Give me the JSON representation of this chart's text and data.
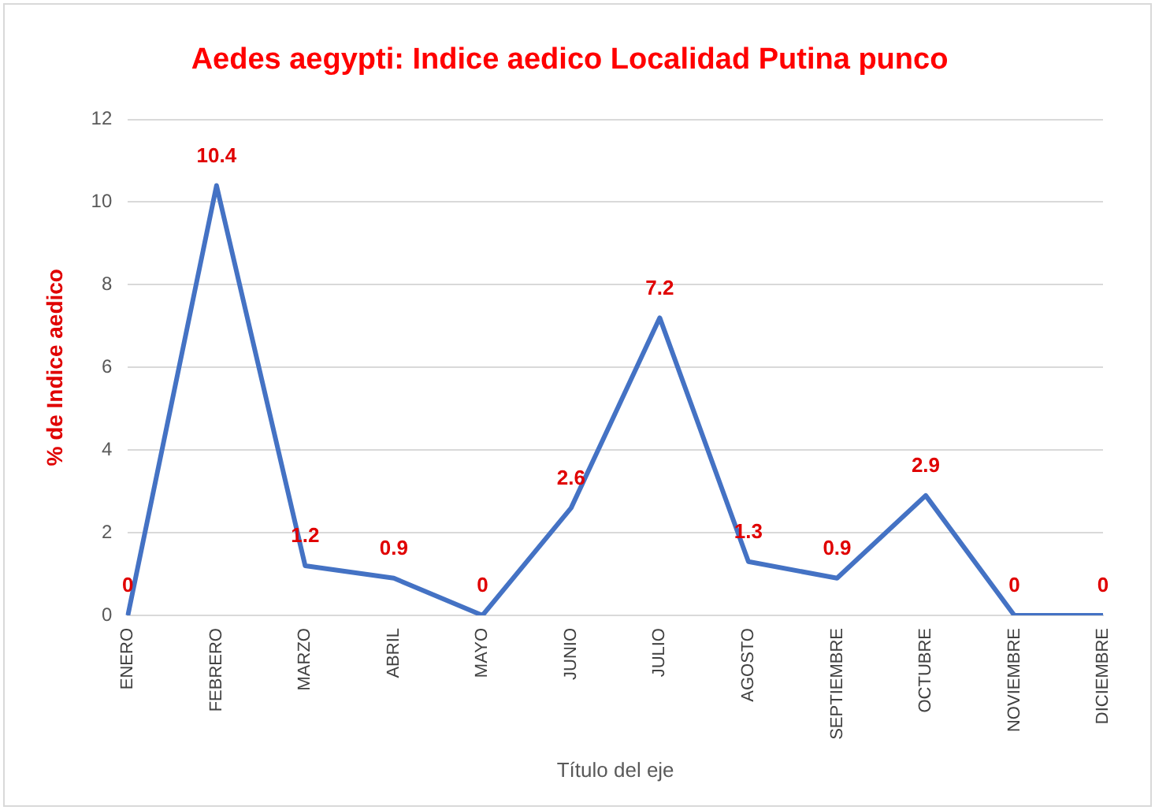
{
  "chart_data": {
    "type": "line",
    "title": "Aedes aegypti: Indice aedico Localidad Putina punco",
    "xlabel": "Título del eje",
    "ylabel": "% de Indice aedico",
    "categories": [
      "ENERO",
      "FEBRERO",
      "MARZO",
      "ABRIL",
      "MAYO",
      "JUNIO",
      "JULIO",
      "AGOSTO",
      "SEPTIEMBRE",
      "OCTUBRE",
      "NOVIEMBRE",
      "DICIEMBRE"
    ],
    "series": [
      {
        "color": "#4472c4",
        "values": [
          0,
          10.4,
          1.2,
          0.9,
          0,
          2.6,
          7.2,
          1.3,
          0.9,
          2.9,
          0,
          0
        ]
      }
    ],
    "ylim": [
      0,
      12
    ],
    "yticks": [
      0,
      2,
      4,
      6,
      8,
      10,
      12
    ],
    "grid": "y",
    "legend": false,
    "marker": "none",
    "line_style": "solid",
    "data_labels": true
  }
}
